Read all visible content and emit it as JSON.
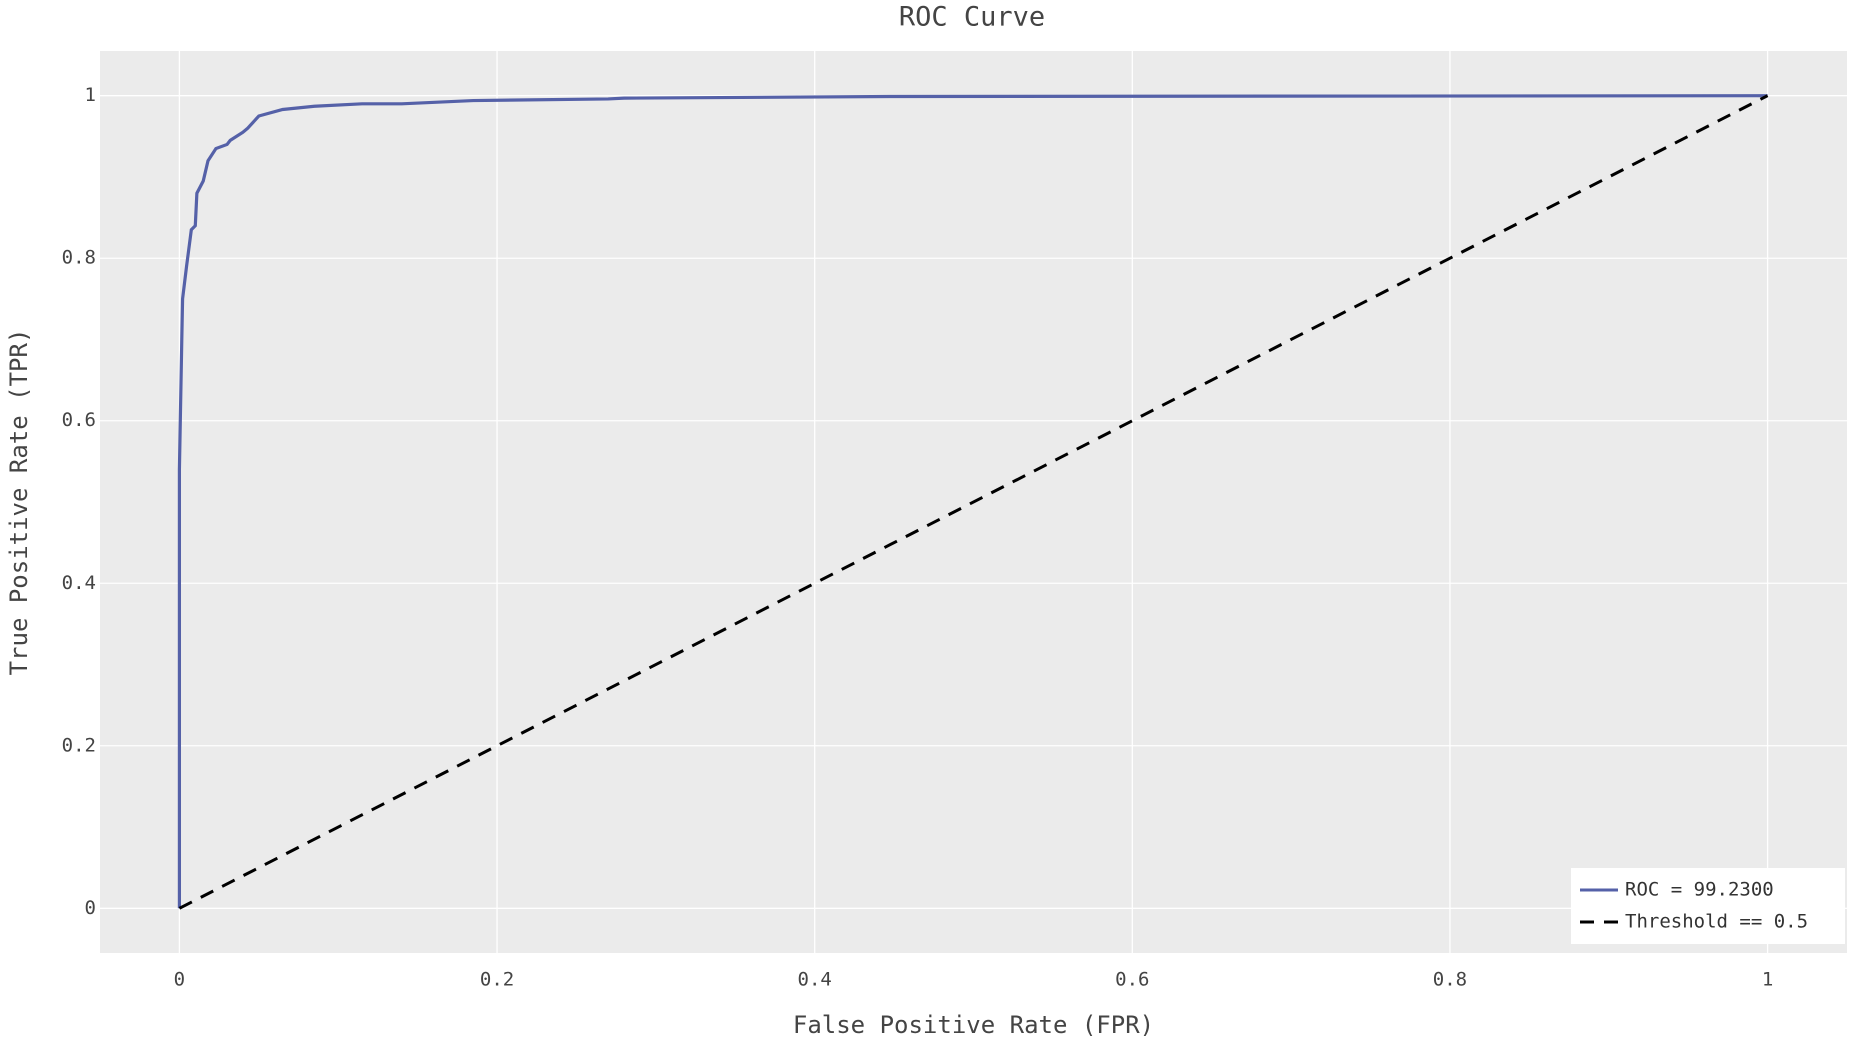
{
  "chart_data": {
    "type": "line",
    "title": "ROC Curve",
    "x_label": "False Positive Rate (FPR)",
    "y_label": "True Positive Rate (TPR)",
    "xlim": [
      -0.05,
      1.05
    ],
    "ylim": [
      -0.055,
      1.055
    ],
    "xticks": [
      0,
      0.2,
      0.4,
      0.6,
      0.8,
      1
    ],
    "yticks": [
      0,
      0.2,
      0.4,
      0.6,
      0.8,
      1
    ],
    "grid": true,
    "legend": "lower right",
    "series": [
      {
        "name": "ROC = 99.2300",
        "color": "#5561a8",
        "dash": false,
        "x": [
          0,
          0,
          0.0015,
          0.002,
          0.0045,
          0.0075,
          0.01,
          0.011,
          0.015,
          0.018,
          0.023,
          0.03,
          0.032,
          0.04,
          0.043,
          0.05,
          0.065,
          0.085,
          0.115,
          0.14,
          0.185,
          0.27,
          0.28,
          0.45,
          1
        ],
        "values": [
          0,
          0.54,
          0.7,
          0.75,
          0.79,
          0.835,
          0.84,
          0.88,
          0.895,
          0.92,
          0.935,
          0.94,
          0.945,
          0.955,
          0.96,
          0.975,
          0.983,
          0.987,
          0.99,
          0.99,
          0.994,
          0.996,
          0.997,
          0.999,
          1
        ]
      },
      {
        "name": "Threshold == 0.5",
        "color": "#000000",
        "dash": true,
        "x": [
          0,
          1
        ],
        "values": [
          0,
          1
        ]
      }
    ]
  }
}
